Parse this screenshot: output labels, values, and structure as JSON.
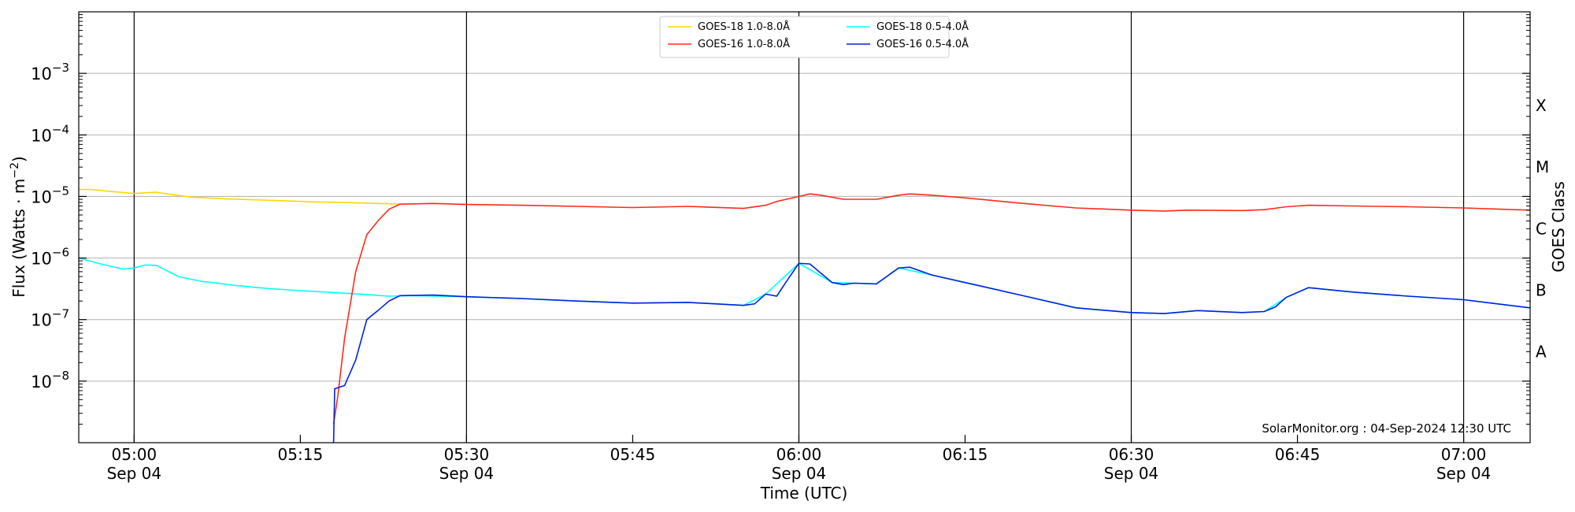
{
  "chart_data": {
    "type": "line",
    "xlabel": "Time (UTC)",
    "ylabel": "Flux (Watts · m",
    "ylabel_sup": "−2",
    "ylabel_close": ")",
    "right_label": "GOES Class",
    "credit": "SolarMonitor.org : 04-Sep-2024 12:30 UTC",
    "x_range": [
      "04:55",
      "07:06"
    ],
    "y_range": [
      1e-09,
      0.01
    ],
    "y_scale": "log",
    "grid": "horizontal major",
    "legend_position": "top-center",
    "x_ticks": [
      {
        "t": "05:00",
        "label": "05:00",
        "sub": "Sep 04",
        "major": true
      },
      {
        "t": "05:15",
        "label": "05:15",
        "sub": "",
        "major": false
      },
      {
        "t": "05:30",
        "label": "05:30",
        "sub": "Sep 04",
        "major": true
      },
      {
        "t": "05:45",
        "label": "05:45",
        "sub": "",
        "major": false
      },
      {
        "t": "06:00",
        "label": "06:00",
        "sub": "Sep 04",
        "major": true
      },
      {
        "t": "06:15",
        "label": "06:15",
        "sub": "",
        "major": false
      },
      {
        "t": "06:30",
        "label": "06:30",
        "sub": "Sep 04",
        "major": true
      },
      {
        "t": "06:45",
        "label": "06:45",
        "sub": "",
        "major": false
      },
      {
        "t": "07:00",
        "label": "07:00",
        "sub": "Sep 04",
        "major": true
      }
    ],
    "y_ticks": [
      {
        "value": 1e-08,
        "base": "10",
        "exp": "−8"
      },
      {
        "value": 1e-07,
        "base": "10",
        "exp": "−7"
      },
      {
        "value": 1e-06,
        "base": "10",
        "exp": "−6"
      },
      {
        "value": 1e-05,
        "base": "10",
        "exp": "−5"
      },
      {
        "value": 0.0001,
        "base": "10",
        "exp": "−4"
      },
      {
        "value": 0.001,
        "base": "10",
        "exp": "−3"
      }
    ],
    "goes_classes": [
      {
        "label": "A",
        "value": 3e-08
      },
      {
        "label": "B",
        "value": 3e-07
      },
      {
        "label": "C",
        "value": 3e-06
      },
      {
        "label": "M",
        "value": 3e-05
      },
      {
        "label": "X",
        "value": 0.0003
      }
    ],
    "series": [
      {
        "name": "GOES-18 1.0-8.0Å",
        "color": "#FFD700",
        "points": [
          [
            "04:55",
            1.3e-05
          ],
          [
            "04:56",
            1.3e-05
          ],
          [
            "04:58",
            1.2e-05
          ],
          [
            "05:00",
            1.12e-05
          ],
          [
            "05:02",
            1.17e-05
          ],
          [
            "05:03",
            1.1e-05
          ],
          [
            "05:05",
            9.8e-06
          ],
          [
            "05:08",
            9.2e-06
          ],
          [
            "05:12",
            8.7e-06
          ],
          [
            "05:16",
            8.2e-06
          ],
          [
            "05:20",
            7.9e-06
          ],
          [
            "05:23",
            7.6e-06
          ],
          [
            "05:24",
            7.5e-06
          ]
        ]
      },
      {
        "name": "GOES-18 0.5-4.0Å",
        "color": "#00FFFF",
        "points": [
          [
            "04:55",
            1e-06
          ],
          [
            "04:57",
            8e-07
          ],
          [
            "04:59",
            6.6e-07
          ],
          [
            "05:00",
            6.9e-07
          ],
          [
            "05:01",
            7.7e-07
          ],
          [
            "05:02",
            7.6e-07
          ],
          [
            "05:04",
            5e-07
          ],
          [
            "05:06",
            4.2e-07
          ],
          [
            "05:09",
            3.6e-07
          ],
          [
            "05:12",
            3.2e-07
          ],
          [
            "05:15",
            2.95e-07
          ],
          [
            "05:18",
            2.75e-07
          ],
          [
            "05:21",
            2.55e-07
          ],
          [
            "05:23",
            2.4e-07
          ],
          [
            "05:25",
            2.45e-07
          ],
          [
            "05:30",
            2.35e-07
          ],
          [
            "05:35",
            2.2e-07
          ],
          [
            "05:40",
            2e-07
          ],
          [
            "05:45",
            1.85e-07
          ],
          [
            "05:50",
            1.9e-07
          ],
          [
            "05:55",
            1.7e-07
          ],
          [
            "05:57",
            2.6e-07
          ],
          [
            "06:00",
            8.2e-07
          ],
          [
            "06:03",
            4e-07
          ],
          [
            "06:05",
            3.9e-07
          ],
          [
            "06:07",
            3.8e-07
          ],
          [
            "06:09",
            6.9e-07
          ],
          [
            "06:12",
            5.3e-07
          ],
          [
            "06:15",
            4e-07
          ],
          [
            "06:20",
            2.5e-07
          ],
          [
            "06:25",
            1.55e-07
          ],
          [
            "06:30",
            1.3e-07
          ],
          [
            "06:33",
            1.25e-07
          ],
          [
            "06:36",
            1.4e-07
          ],
          [
            "06:40",
            1.3e-07
          ],
          [
            "06:42",
            1.35e-07
          ],
          [
            "06:44",
            2.3e-07
          ],
          [
            "06:46",
            3.3e-07
          ],
          [
            "06:50",
            2.8e-07
          ],
          [
            "06:55",
            2.4e-07
          ],
          [
            "07:00",
            2.1e-07
          ],
          [
            "07:06",
            1.55e-07
          ]
        ]
      },
      {
        "name": "GOES-16 1.0-8.0Å",
        "color": "#FF2A1A",
        "points": [
          [
            "05:18",
            2e-09
          ],
          [
            "05:18.4",
            6e-09
          ],
          [
            "05:19",
            5e-08
          ],
          [
            "05:20",
            6e-07
          ],
          [
            "05:21",
            2.4e-06
          ],
          [
            "05:22",
            4e-06
          ],
          [
            "05:23",
            6.2e-06
          ],
          [
            "05:24",
            7.5e-06
          ],
          [
            "05:27",
            7.7e-06
          ],
          [
            "05:30",
            7.4e-06
          ],
          [
            "05:35",
            7.2e-06
          ],
          [
            "05:40",
            6.9e-06
          ],
          [
            "05:45",
            6.6e-06
          ],
          [
            "05:50",
            6.9e-06
          ],
          [
            "05:55",
            6.4e-06
          ],
          [
            "05:57",
            7.2e-06
          ],
          [
            "05:58",
            8.3e-06
          ],
          [
            "06:00",
            1e-05
          ],
          [
            "06:01",
            1.1e-05
          ],
          [
            "06:02",
            1.05e-05
          ],
          [
            "06:04",
            9e-06
          ],
          [
            "06:07",
            9e-06
          ],
          [
            "06:09",
            1.05e-05
          ],
          [
            "06:10",
            1.1e-05
          ],
          [
            "06:12",
            1.05e-05
          ],
          [
            "06:15",
            9.5e-06
          ],
          [
            "06:20",
            7.8e-06
          ],
          [
            "06:25",
            6.5e-06
          ],
          [
            "06:30",
            6e-06
          ],
          [
            "06:33",
            5.8e-06
          ],
          [
            "06:35",
            6e-06
          ],
          [
            "06:40",
            5.9e-06
          ],
          [
            "06:42",
            6.1e-06
          ],
          [
            "06:44",
            6.8e-06
          ],
          [
            "06:46",
            7.2e-06
          ],
          [
            "06:50",
            7e-06
          ],
          [
            "06:55",
            6.8e-06
          ],
          [
            "07:00",
            6.5e-06
          ],
          [
            "07:06",
            6e-06
          ]
        ]
      },
      {
        "name": "GOES-16 0.5-4.0Å",
        "color": "#0022DD",
        "points": [
          [
            "05:18",
            1e-09
          ],
          [
            "05:18.1",
            7.5e-09
          ],
          [
            "05:19",
            8.5e-09
          ],
          [
            "05:20",
            2.2e-08
          ],
          [
            "05:21",
            1e-07
          ],
          [
            "05:22",
            1.4e-07
          ],
          [
            "05:23",
            2e-07
          ],
          [
            "05:24",
            2.45e-07
          ],
          [
            "05:27",
            2.5e-07
          ],
          [
            "05:30",
            2.35e-07
          ],
          [
            "05:35",
            2.2e-07
          ],
          [
            "05:40",
            2e-07
          ],
          [
            "05:45",
            1.85e-07
          ],
          [
            "05:50",
            1.9e-07
          ],
          [
            "05:55",
            1.7e-07
          ],
          [
            "05:56",
            1.8e-07
          ],
          [
            "05:57",
            2.6e-07
          ],
          [
            "05:58",
            2.4e-07
          ],
          [
            "05:59",
            4.5e-07
          ],
          [
            "06:00",
            8.2e-07
          ],
          [
            "06:01",
            8e-07
          ],
          [
            "06:03",
            4e-07
          ],
          [
            "06:04",
            3.7e-07
          ],
          [
            "06:05",
            3.9e-07
          ],
          [
            "06:07",
            3.8e-07
          ],
          [
            "06:09",
            6.9e-07
          ],
          [
            "06:10",
            7.1e-07
          ],
          [
            "06:12",
            5.3e-07
          ],
          [
            "06:15",
            4e-07
          ],
          [
            "06:20",
            2.5e-07
          ],
          [
            "06:25",
            1.55e-07
          ],
          [
            "06:30",
            1.3e-07
          ],
          [
            "06:33",
            1.25e-07
          ],
          [
            "06:36",
            1.4e-07
          ],
          [
            "06:40",
            1.3e-07
          ],
          [
            "06:42",
            1.35e-07
          ],
          [
            "06:43",
            1.6e-07
          ],
          [
            "06:44",
            2.3e-07
          ],
          [
            "06:46",
            3.3e-07
          ],
          [
            "06:50",
            2.8e-07
          ],
          [
            "06:55",
            2.4e-07
          ],
          [
            "07:00",
            2.1e-07
          ],
          [
            "07:06",
            1.55e-07
          ]
        ]
      }
    ]
  }
}
